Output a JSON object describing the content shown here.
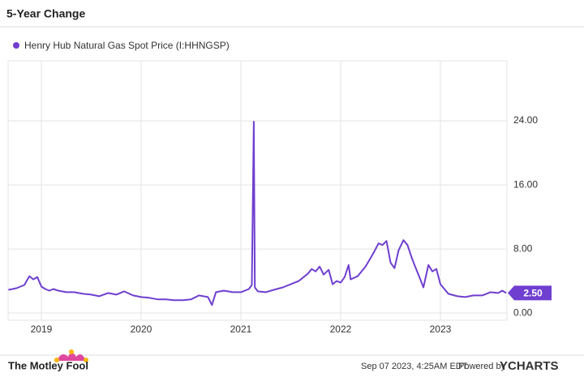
{
  "chart_data": {
    "type": "line",
    "title": "5-Year Change",
    "x": [
      2018.67,
      2018.75,
      2018.83,
      2018.88,
      2018.92,
      2018.96,
      2019.0,
      2019.04,
      2019.08,
      2019.12,
      2019.17,
      2019.25,
      2019.33,
      2019.42,
      2019.5,
      2019.58,
      2019.67,
      2019.75,
      2019.83,
      2019.92,
      2020.0,
      2020.08,
      2020.17,
      2020.25,
      2020.33,
      2020.42,
      2020.5,
      2020.58,
      2020.67,
      2020.71,
      2020.75,
      2020.83,
      2020.92,
      2021.0,
      2021.08,
      2021.11,
      2021.13,
      2021.14,
      2021.17,
      2021.25,
      2021.33,
      2021.42,
      2021.5,
      2021.58,
      2021.67,
      2021.71,
      2021.75,
      2021.79,
      2021.83,
      2021.88,
      2021.92,
      2021.96,
      2022.0,
      2022.04,
      2022.08,
      2022.1,
      2022.17,
      2022.25,
      2022.33,
      2022.38,
      2022.42,
      2022.46,
      2022.5,
      2022.54,
      2022.58,
      2022.63,
      2022.67,
      2022.71,
      2022.75,
      2022.79,
      2022.83,
      2022.88,
      2022.92,
      2022.96,
      2023.0,
      2023.04,
      2023.08,
      2023.17,
      2023.25,
      2023.33,
      2023.42,
      2023.5,
      2023.58,
      2023.62,
      2023.66
    ],
    "series": [
      {
        "name": "Henry Hub Natural Gas Spot Price (I:HHNGSP)",
        "color": "#6f3fd0",
        "values": [
          2.9,
          3.1,
          3.5,
          4.6,
          4.2,
          4.5,
          3.3,
          3.0,
          2.8,
          3.0,
          2.8,
          2.6,
          2.6,
          2.4,
          2.3,
          2.1,
          2.5,
          2.3,
          2.7,
          2.2,
          2.0,
          1.9,
          1.7,
          1.7,
          1.6,
          1.6,
          1.7,
          2.2,
          2.0,
          1.0,
          2.6,
          2.8,
          2.6,
          2.6,
          3.0,
          3.5,
          23.9,
          3.2,
          2.7,
          2.6,
          2.9,
          3.2,
          3.6,
          4.0,
          4.9,
          5.5,
          5.2,
          5.8,
          4.8,
          5.4,
          3.6,
          4.0,
          3.8,
          4.5,
          6.0,
          4.2,
          4.6,
          5.8,
          7.5,
          8.7,
          8.5,
          9.0,
          6.3,
          5.6,
          7.8,
          9.1,
          8.5,
          7.0,
          5.7,
          4.5,
          3.2,
          6.0,
          5.2,
          5.5,
          3.6,
          3.0,
          2.4,
          2.1,
          2.0,
          2.2,
          2.2,
          2.6,
          2.5,
          2.8,
          2.5
        ]
      }
    ],
    "current_value": {
      "value": 2.5,
      "label": "2.50"
    },
    "xlim": [
      2018.667,
      2023.667
    ],
    "xticks": [
      2019,
      2020,
      2021,
      2022,
      2023
    ],
    "ylim": [
      -0.9,
      31.5
    ],
    "yticks": [
      {
        "value": 0,
        "label": "0.00"
      },
      {
        "value": 8,
        "label": "8.00"
      },
      {
        "value": 16,
        "label": "16.00"
      },
      {
        "value": 24,
        "label": "24.00"
      }
    ],
    "grid": true
  },
  "footer": {
    "logo_text": "The Motley Fool",
    "timestamp": "Sep 07 2023, 4:25AM EDT.",
    "powered_by": "Powered by",
    "brand": "YCHARTS"
  }
}
